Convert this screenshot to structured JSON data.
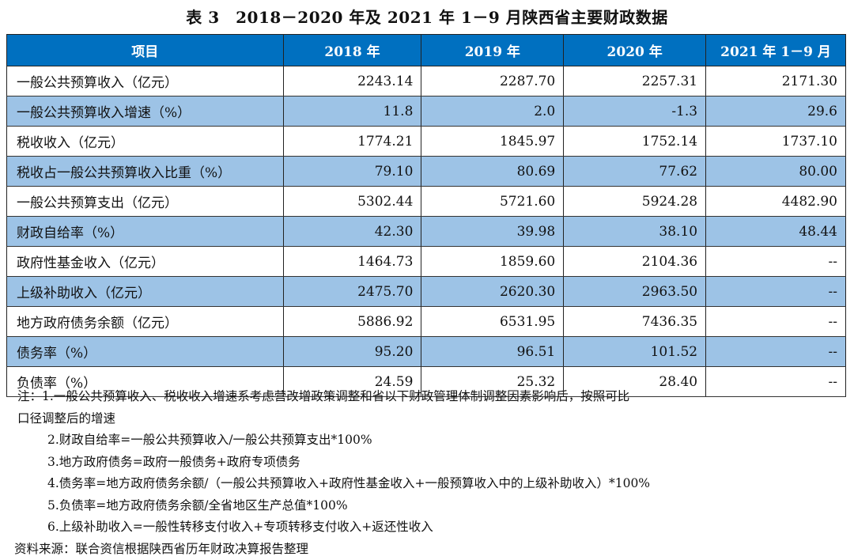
{
  "title": "表 3　2018－2020 年及 2021 年 1－9 月陕西省主要财政数据",
  "columns": [
    "项目",
    "2018 年",
    "2019 年",
    "2020 年",
    "2021 年 1－9 月"
  ],
  "rows": [
    {
      "label": "一般公共预算收入（亿元）",
      "values": [
        "2243.14",
        "2287.70",
        "2257.31",
        "2171.30"
      ]
    },
    {
      "label": "一般公共预算收入增速（%）",
      "values": [
        "11.8",
        "2.0",
        "-1.3",
        "29.6"
      ]
    },
    {
      "label": "税收收入（亿元）",
      "values": [
        "1774.21",
        "1845.97",
        "1752.14",
        "1737.10"
      ]
    },
    {
      "label": "税收占一般公共预算收入比重（%）",
      "values": [
        "79.10",
        "80.69",
        "77.62",
        "80.00"
      ]
    },
    {
      "label": "一般公共预算支出（亿元）",
      "values": [
        "5302.44",
        "5721.60",
        "5924.28",
        "4482.90"
      ]
    },
    {
      "label": "财政自给率（%）",
      "values": [
        "42.30",
        "39.98",
        "38.10",
        "48.44"
      ]
    },
    {
      "label": "政府性基金收入（亿元）",
      "values": [
        "1464.73",
        "1859.60",
        "2104.36",
        "--"
      ]
    },
    {
      "label": "上级补助收入（亿元）",
      "values": [
        "2475.70",
        "2620.30",
        "2963.50",
        "--"
      ]
    },
    {
      "label": "地方政府债务余额（亿元）",
      "values": [
        "5886.92",
        "6531.95",
        "7436.35",
        "--"
      ]
    },
    {
      "label": "债务率（%）",
      "values": [
        "95.20",
        "96.51",
        "101.52",
        "--"
      ]
    },
    {
      "label": "负债率（%）",
      "values": [
        "24.59",
        "25.32",
        "28.40",
        "--"
      ]
    }
  ],
  "notes": [
    "注：1.一般公共预算收入、税收收入增速系考虑营改增政策调整和省以下财政管理体制调整因素影响后，按照可比",
    "口径调整后的增速",
    "2.财政自给率=一般公共预算收入/一般公共预算支出*100%",
    "3.地方政府债务=政府一般债务+政府专项债务",
    "4.债务率=地方政府债务余额/（一般公共预算收入+政府性基金收入+一般预算收入中的上级补助收入）*100%",
    "5.负债率=地方政府债务余额/全省地区生产总值*100%",
    "6.上级补助收入=一般性转移支付收入+专项转移支付收入+返还性收入"
  ],
  "source": "资料来源：联合资信根据陕西省历年财政决算报告整理",
  "colors": {
    "header": "#0070C0",
    "stripe": "#9DC3E6"
  }
}
